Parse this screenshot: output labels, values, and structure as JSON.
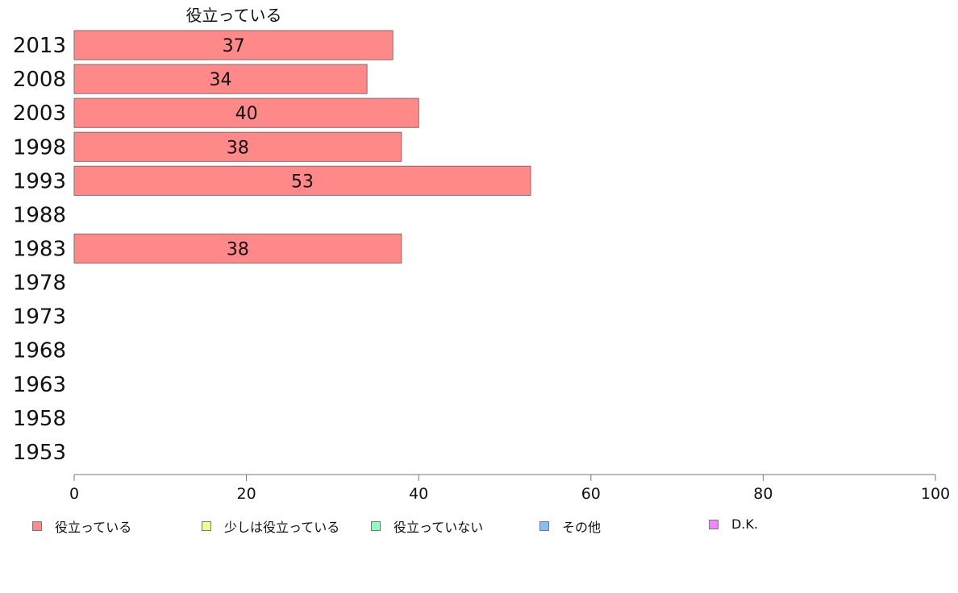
{
  "chart_data": {
    "type": "bar",
    "orientation": "horizontal",
    "title": "役立っている",
    "categories": [
      "2013",
      "2008",
      "2003",
      "1998",
      "1993",
      "1988",
      "1983",
      "1978",
      "1973",
      "1968",
      "1963",
      "1958",
      "1953"
    ],
    "series": [
      {
        "name": "役立っている",
        "color": "#ff8888",
        "values": [
          37,
          34,
          40,
          38,
          53,
          null,
          38,
          null,
          null,
          null,
          null,
          null,
          null
        ]
      }
    ],
    "data_labels": [
      "37",
      "34",
      "40",
      "38",
      "53",
      "",
      "38",
      "",
      "",
      "",
      "",
      "",
      ""
    ],
    "xlim": [
      0,
      100
    ],
    "xticks": [
      "0",
      "20",
      "40",
      "60",
      "80",
      "100"
    ],
    "grid": false,
    "legend_position": "bottom"
  },
  "legend": {
    "items": [
      {
        "label": "役立っている",
        "color": "#ff8888"
      },
      {
        "label": "少しは役立っている",
        "color": "#eeff88"
      },
      {
        "label": "役立っていない",
        "color": "#88ffbb"
      },
      {
        "label": "その他",
        "color": "#88bbff"
      },
      {
        "label": "D.K.",
        "color": "#ee88ff"
      }
    ]
  }
}
